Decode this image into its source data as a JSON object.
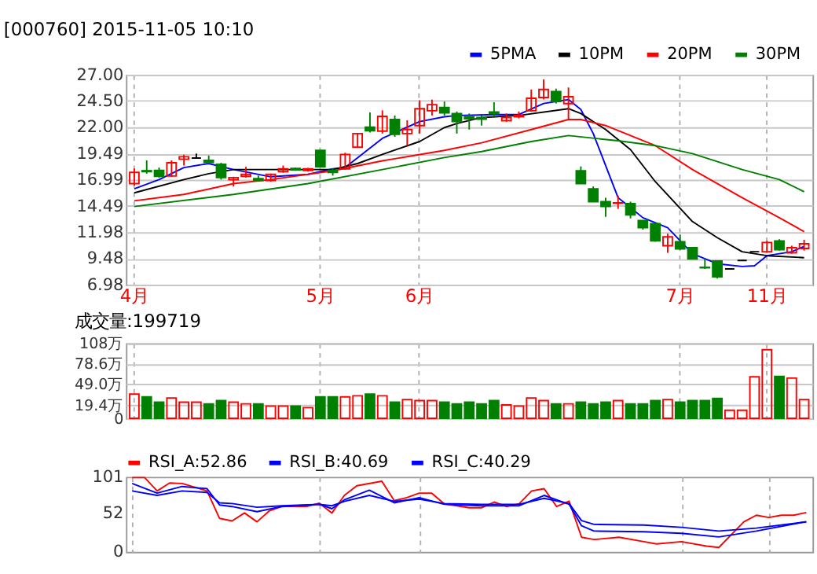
{
  "chart_data": [
    {
      "type": "candlestick",
      "title": "[000760] 2015-11-05 10:10",
      "categories": [
        "4月",
        null,
        null,
        null,
        null,
        null,
        null,
        null,
        null,
        null,
        null,
        null,
        null,
        null,
        null,
        "5月",
        null,
        null,
        null,
        null,
        null,
        null,
        null,
        "6月",
        null,
        null,
        null,
        null,
        null,
        null,
        null,
        null,
        null,
        null,
        null,
        null,
        null,
        null,
        null,
        null,
        null,
        null,
        null,
        null,
        "7月",
        null,
        null,
        null,
        null,
        null,
        null,
        "11月",
        null,
        null,
        null
      ],
      "ohlc": [
        [
          16.62,
          18.07,
          16.43,
          17.69
        ],
        [
          17.85,
          18.83,
          17.57,
          17.76
        ],
        [
          17.88,
          18.15,
          17.19,
          17.31
        ],
        [
          17.34,
          18.83,
          17.27,
          18.6
        ],
        [
          18.95,
          19.37,
          18.34,
          19.18
        ],
        [
          19.06,
          19.48,
          19.06,
          19.06
        ],
        [
          18.83,
          19.29,
          18.53,
          18.64
        ],
        [
          18.45,
          18.6,
          17.0,
          17.19
        ],
        [
          17.0,
          17.27,
          16.35,
          17.19
        ],
        [
          17.31,
          18.22,
          17.19,
          17.5
        ],
        [
          17.1,
          17.38,
          16.81,
          16.92
        ],
        [
          16.92,
          17.57,
          16.81,
          17.5
        ],
        [
          17.76,
          18.34,
          17.65,
          18.03
        ],
        [
          18.07,
          18.15,
          17.84,
          17.92
        ],
        [
          17.88,
          18.11,
          17.76,
          18.03
        ],
        [
          19.79,
          19.79,
          18.22,
          18.22
        ],
        [
          17.88,
          18.07,
          17.38,
          17.69
        ],
        [
          18.03,
          19.56,
          17.96,
          19.4
        ],
        [
          20.09,
          21.39,
          20.09,
          21.39
        ],
        [
          22.0,
          23.41,
          21.5,
          21.66
        ],
        [
          21.62,
          23.6,
          21.39,
          23.03
        ],
        [
          22.73,
          23.11,
          21.08,
          21.31
        ],
        [
          21.39,
          22.65,
          20.24,
          21.77
        ],
        [
          22.15,
          24.56,
          21.39,
          23.76
        ],
        [
          23.56,
          24.63,
          23.11,
          24.14
        ],
        [
          23.87,
          24.44,
          23.11,
          23.37
        ],
        [
          23.3,
          23.49,
          21.39,
          22.53
        ],
        [
          22.99,
          23.3,
          21.77,
          22.8
        ],
        [
          22.92,
          23.11,
          22.15,
          22.77
        ],
        [
          23.45,
          24.37,
          22.99,
          23.3
        ],
        [
          22.61,
          23.3,
          22.53,
          22.92
        ],
        [
          22.99,
          23.49,
          22.84,
          23.11
        ],
        [
          23.56,
          25.59,
          23.49,
          24.75
        ],
        [
          24.82,
          26.54,
          24.63,
          25.59
        ],
        [
          25.4,
          25.67,
          24.25,
          24.44
        ],
        [
          24.25,
          25.78,
          22.73,
          24.9
        ],
        [
          17.84,
          18.26,
          16.62,
          16.62
        ],
        [
          16.12,
          16.35,
          14.9,
          14.9
        ],
        [
          14.9,
          15.28,
          13.45,
          14.44
        ],
        [
          14.75,
          15.47,
          14.21,
          14.79
        ],
        [
          14.71,
          14.9,
          13.3,
          13.64
        ],
        [
          13.11,
          13.11,
          12.23,
          12.42
        ],
        [
          12.8,
          12.8,
          11.08,
          11.16
        ],
        [
          10.7,
          11.85,
          10.02,
          11.54
        ],
        [
          11.08,
          11.77,
          10.32,
          10.4
        ],
        [
          10.51,
          10.51,
          9.44,
          9.44
        ],
        [
          8.64,
          9.48,
          8.49,
          8.6
        ],
        [
          9.25,
          9.25,
          7.57,
          7.73
        ],
        [
          8.49,
          8.49,
          8.49,
          8.49
        ],
        [
          9.29,
          9.29,
          9.29,
          9.29
        ],
        [
          10.13,
          10.13,
          10.13,
          10.13
        ],
        [
          10.13,
          11.16,
          10.02,
          11.01
        ],
        [
          11.16,
          11.31,
          10.24,
          10.32
        ],
        [
          10.02,
          10.7,
          9.94,
          10.51
        ],
        [
          10.44,
          11.27,
          10.24,
          10.89
        ]
      ],
      "colors": [
        "#ff0000",
        "#008000",
        "#008000",
        "#ff0000",
        "#ff0000",
        "#000000",
        "#008000",
        "#008000",
        "#ff0000",
        "#ff0000",
        "#008000",
        "#ff0000",
        "#ff0000",
        "#008000",
        "#ff0000",
        "#008000",
        "#008000",
        "#ff0000",
        "#ff0000",
        "#008000",
        "#ff0000",
        "#008000",
        "#ff0000",
        "#ff0000",
        "#ff0000",
        "#008000",
        "#008000",
        "#008000",
        "#008000",
        "#008000",
        "#ff0000",
        "#ff0000",
        "#ff0000",
        "#ff0000",
        "#008000",
        "#ff0000",
        "#008000",
        "#008000",
        "#008000",
        "#ff0000",
        "#008000",
        "#008000",
        "#008000",
        "#ff0000",
        "#008000",
        "#008000",
        "#008000",
        "#008000",
        "#000000",
        "#000000",
        "#000000",
        "#ff0000",
        "#008000",
        "#ff0000",
        "#ff0000"
      ],
      "series": [
        {
          "name": "5PMA",
          "type": "line",
          "color": "#0000ff",
          "values": [
            16.12,
            null,
            17.0,
            null,
            18.15,
            null,
            18.53,
            null,
            17.96,
            null,
            null,
            17.27,
            null,
            null,
            17.5,
            null,
            18.03,
            18.15,
            null,
            null,
            20.93,
            null,
            null,
            22.53,
            null,
            22.99,
            23.11,
            null,
            null,
            23.2,
            null,
            23.2,
            null,
            24.25,
            null,
            24.63,
            23.68,
            21.39,
            18.34,
            15.28,
            14.33,
            13.37,
            null,
            12.42,
            null,
            9.94,
            null,
            8.98,
            null,
            8.72,
            8.79,
            9.75,
            null,
            10.13,
            10.63
          ]
        },
        {
          "name": "10PM",
          "type": "line",
          "color": "#000000",
          "values": [
            15.74,
            null,
            null,
            null,
            17.0,
            null,
            17.57,
            null,
            17.96,
            null,
            null,
            17.96,
            null,
            null,
            17.96,
            null,
            17.96,
            null,
            18.53,
            null,
            19.4,
            null,
            null,
            20.63,
            null,
            21.96,
            22.34,
            null,
            22.92,
            null,
            null,
            23.11,
            null,
            null,
            null,
            23.76,
            23.3,
            null,
            21.77,
            null,
            19.86,
            null,
            16.81,
            null,
            null,
            13.0,
            null,
            11.47,
            null,
            10.13,
            null,
            9.75,
            null,
            null,
            9.56
          ]
        },
        {
          "name": "20PM",
          "type": "line",
          "color": "#ff0000",
          "values": [
            14.98,
            null,
            null,
            null,
            15.59,
            null,
            null,
            null,
            16.62,
            null,
            null,
            17.0,
            null,
            null,
            null,
            null,
            17.84,
            null,
            null,
            null,
            18.79,
            null,
            null,
            null,
            null,
            19.79,
            null,
            null,
            20.51,
            null,
            null,
            null,
            21.77,
            null,
            null,
            22.73,
            22.73,
            null,
            22.15,
            null,
            null,
            null,
            20.24,
            null,
            null,
            17.96,
            null,
            null,
            null,
            15.28,
            null,
            null,
            13.37,
            null,
            12.04
          ]
        },
        {
          "name": "30PM",
          "type": "line",
          "color": "#008000",
          "values": [
            14.44,
            null,
            null,
            null,
            null,
            null,
            null,
            null,
            15.59,
            null,
            null,
            null,
            null,
            null,
            16.62,
            null,
            null,
            null,
            null,
            null,
            17.96,
            null,
            null,
            null,
            null,
            19.1,
            null,
            null,
            19.67,
            null,
            null,
            null,
            20.63,
            null,
            null,
            21.2,
            null,
            null,
            null,
            20.7,
            null,
            null,
            20.24,
            null,
            null,
            19.48,
            null,
            null,
            null,
            17.96,
            null,
            null,
            17.0,
            null,
            15.85
          ]
        }
      ],
      "ylim": [
        6.98,
        27.0
      ],
      "yticks": [
        {
          "value": 6.98,
          "label": "6.98"
        },
        {
          "value": 9.48,
          "label": "9.48"
        },
        {
          "value": 11.98,
          "label": "11.98"
        },
        {
          "value": 14.49,
          "label": "14.49"
        },
        {
          "value": 16.99,
          "label": "16.99"
        },
        {
          "value": 19.49,
          "label": "19.49"
        },
        {
          "value": 22.0,
          "label": "22.00"
        },
        {
          "value": 24.5,
          "label": "24.50"
        },
        {
          "value": 27.0,
          "label": "27.00"
        }
      ],
      "grid": true,
      "legend": "top right"
    },
    {
      "type": "bar",
      "title": "成交量:199719",
      "categories": [
        null,
        null,
        null,
        null,
        null,
        null,
        null,
        null,
        null,
        null,
        null,
        null,
        null,
        null,
        null,
        null,
        null,
        null,
        null,
        null,
        null,
        null,
        null,
        null,
        null,
        null,
        null,
        null,
        null,
        null,
        null,
        null,
        null,
        null,
        null,
        null,
        null,
        null,
        null,
        null,
        null,
        null,
        null,
        null,
        null,
        null,
        null,
        null,
        null,
        null,
        null,
        null,
        null,
        null,
        null
      ],
      "values": [
        34.7,
        30.8,
        23.1,
        29.3,
        23.1,
        23.1,
        20.8,
        25.4,
        23.1,
        20.8,
        20.8,
        17.7,
        17.7,
        17.7,
        15.4,
        30.8,
        30.8,
        30.8,
        32.4,
        34.7,
        32.4,
        23.1,
        27.0,
        25.4,
        25.4,
        23.1,
        20.8,
        23.1,
        20.8,
        25.4,
        19.3,
        17.7,
        29.3,
        25.4,
        20.8,
        20.8,
        23.1,
        20.8,
        23.1,
        25.4,
        20.8,
        20.8,
        25.4,
        27.0,
        23.1,
        25.4,
        25.4,
        28.5,
        11.6,
        11.6,
        59.6,
        98.7,
        60.4,
        57.8,
        27.0
      ],
      "colors": [
        "#ff0000",
        "#008000",
        "#008000",
        "#ff0000",
        "#ff0000",
        "#ff0000",
        "#008000",
        "#008000",
        "#ff0000",
        "#ff0000",
        "#008000",
        "#ff0000",
        "#ff0000",
        "#008000",
        "#ff0000",
        "#008000",
        "#008000",
        "#ff0000",
        "#ff0000",
        "#008000",
        "#ff0000",
        "#008000",
        "#ff0000",
        "#ff0000",
        "#ff0000",
        "#008000",
        "#008000",
        "#008000",
        "#008000",
        "#008000",
        "#ff0000",
        "#ff0000",
        "#ff0000",
        "#ff0000",
        "#008000",
        "#ff0000",
        "#008000",
        "#008000",
        "#008000",
        "#ff0000",
        "#008000",
        "#008000",
        "#008000",
        "#ff0000",
        "#008000",
        "#008000",
        "#008000",
        "#008000",
        "#ff0000",
        "#ff0000",
        "#ff0000",
        "#ff0000",
        "#008000",
        "#ff0000",
        "#ff0000"
      ],
      "ylim": [
        0,
        108
      ],
      "yticks": [
        0,
        {
          "value": 19.4,
          "label": "19.4万"
        },
        {
          "value": 49.0,
          "label": "49.0万"
        },
        {
          "value": 78.6,
          "label": "78.6万"
        },
        {
          "value": 108,
          "label": "108万"
        }
      ],
      "grid": true,
      "tick_labels": "y"
    },
    {
      "type": "line",
      "categories": [
        null,
        null,
        null,
        null,
        null,
        null,
        null,
        null,
        null,
        null,
        null,
        null,
        null,
        null,
        null,
        null,
        null,
        null,
        null,
        null,
        null,
        null,
        null,
        null,
        null,
        null,
        null,
        null,
        null,
        null,
        null,
        null,
        null,
        null,
        null,
        null,
        null,
        null,
        null,
        null,
        null,
        null,
        null,
        null,
        null,
        null,
        null,
        null,
        null,
        null,
        null,
        null,
        null,
        null,
        null
      ],
      "series": [
        {
          "name": "RSI_A:52.86",
          "color": "#ff0000",
          "values": [
            100,
            100,
            82,
            92.7,
            92,
            null,
            82,
            45,
            41.6,
            52.3,
            40.4,
            55.3,
            61.2,
            null,
            61.2,
            65.4,
            52.3,
            76,
            89,
            null,
            95,
            68.9,
            73,
            79,
            79,
            64.7,
            null,
            59.4,
            59.4,
            67,
            61,
            64.7,
            82,
            85,
            61,
            68.3,
            19.6,
            16.6,
            null,
            19.6,
            null,
            13.7,
            10.7,
            null,
            13.7,
            null,
            7.7,
            5.9,
            null,
            40.4,
            49.3,
            46.3,
            49.3,
            49.3,
            52.86
          ]
        },
        {
          "name": "RSI_B:40.69",
          "color": "#0000ff",
          "values": [
            92,
            null,
            79,
            null,
            88,
            null,
            85,
            63,
            61,
            null,
            54,
            null,
            61,
            null,
            null,
            64,
            58,
            70,
            null,
            83,
            null,
            66,
            null,
            73,
            null,
            64,
            null,
            null,
            62,
            null,
            null,
            62,
            null,
            76,
            null,
            64,
            35,
            28,
            null,
            null,
            null,
            27,
            null,
            null,
            25,
            null,
            null,
            20,
            null,
            null,
            28,
            null,
            null,
            null,
            40.69
          ]
        },
        {
          "name": "RSI_C:40.29",
          "color": "#0000ff",
          "values": [
            82,
            null,
            76,
            null,
            82,
            null,
            80,
            66,
            65,
            null,
            60,
            null,
            62,
            null,
            null,
            64,
            62,
            68,
            null,
            76,
            null,
            68,
            null,
            71,
            null,
            65,
            null,
            null,
            64,
            null,
            null,
            64,
            null,
            72,
            null,
            65,
            42,
            37,
            null,
            null,
            null,
            36,
            null,
            null,
            33,
            null,
            null,
            28,
            null,
            null,
            32,
            null,
            null,
            null,
            40.29
          ]
        }
      ],
      "ylim": [
        0,
        101
      ],
      "yticks": [
        0,
        52,
        101
      ],
      "grid": "x",
      "tick_labels": "y",
      "legend": "top left"
    }
  ]
}
